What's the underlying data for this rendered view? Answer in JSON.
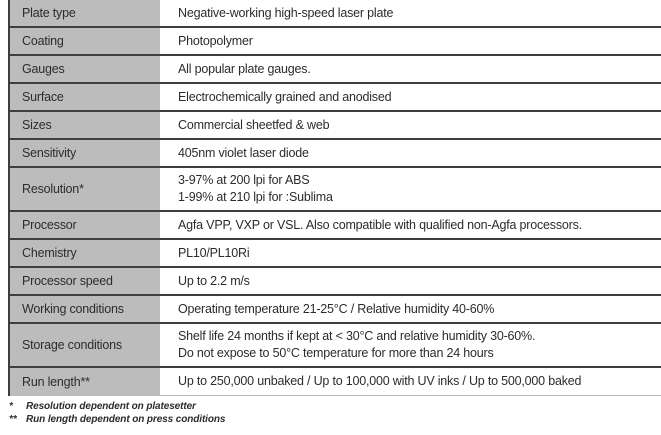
{
  "colors": {
    "label_bg": "#bcbcbd",
    "grid_line": "#3e3e40",
    "text": "#2c2c2e",
    "footnote_text": "#2c2c2e"
  },
  "table": {
    "rows": [
      {
        "label": "Plate type",
        "value_lines": [
          "Negative-working high-speed laser plate"
        ]
      },
      {
        "label": "Coating",
        "value_lines": [
          "Photopolymer"
        ]
      },
      {
        "label": "Gauges",
        "value_lines": [
          "All popular plate gauges."
        ]
      },
      {
        "label": "Surface",
        "value_lines": [
          "Electrochemically grained and anodised"
        ]
      },
      {
        "label": "Sizes",
        "value_lines": [
          "Commercial sheetfed & web"
        ]
      },
      {
        "label": "Sensitivity",
        "value_lines": [
          "405nm violet laser diode"
        ]
      },
      {
        "label": "Resolution*",
        "value_lines": [
          "3-97% at 200 lpi for ABS",
          "1-99% at 210 lpi for :Sublima"
        ]
      },
      {
        "label": "Processor",
        "value_lines": [
          "Agfa VPP, VXP or VSL. Also compatible with qualified non-Agfa processors."
        ]
      },
      {
        "label": "Chemistry",
        "value_lines": [
          "PL10/PL10Ri"
        ]
      },
      {
        "label": "Processor speed",
        "value_lines": [
          "Up to 2.2 m/s"
        ]
      },
      {
        "label": "Working conditions",
        "value_lines": [
          "Operating temperature 21-25°C  / Relative humidity 40-60%"
        ]
      },
      {
        "label": "Storage conditions",
        "value_lines": [
          "Shelf life 24 months if kept at < 30°C and relative humidity 30-60%.",
          "Do not expose to 50°C temperature for more than 24 hours"
        ]
      },
      {
        "label": "Run length**",
        "value_lines": [
          "Up to 250,000 unbaked / Up to 100,000 with UV inks / Up to 500,000 baked"
        ]
      }
    ]
  },
  "footnotes": [
    {
      "marker": "*",
      "text": "Resolution dependent on platesetter"
    },
    {
      "marker": "**",
      "text": "Run length dependent on press conditions"
    }
  ]
}
